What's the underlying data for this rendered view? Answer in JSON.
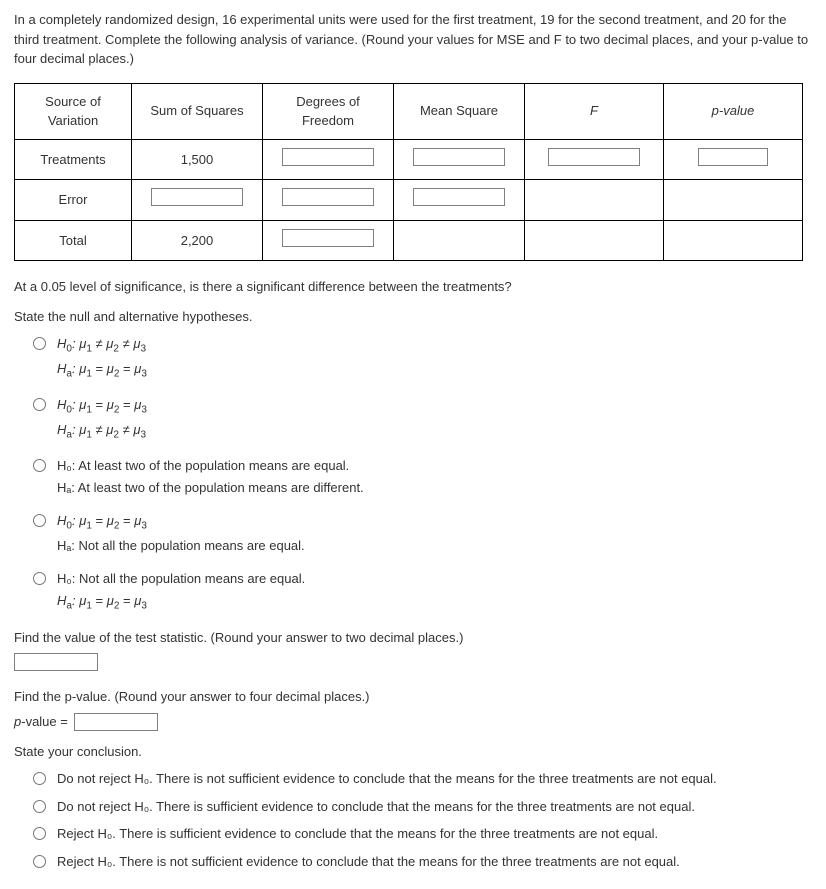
{
  "prompt": "In a completely randomized design, 16 experimental units were used for the first treatment, 19 for the second treatment, and 20 for the third treatment. Complete the following analysis of variance. (Round your values for MSE and F to two decimal places, and your p-value to four decimal places.)",
  "table": {
    "headers": {
      "source": "Source of Variation",
      "ss": "Sum of Squares",
      "df": "Degrees of Freedom",
      "ms": "Mean Square",
      "f": "F",
      "p": "p-value"
    },
    "rows": {
      "treatments": {
        "label": "Treatments",
        "ss": "1,500"
      },
      "error": {
        "label": "Error"
      },
      "total": {
        "label": "Total",
        "ss": "2,200"
      }
    }
  },
  "q_signif": "At a 0.05 level of significance, is there a significant difference between the treatments?",
  "q_state": "State the null and alternative hypotheses.",
  "hyp": {
    "opt1": {
      "h0": "H₀: μ₁ ≠ μ₂ ≠ μ₃",
      "ha": "Hₐ: μ₁ = μ₂ = μ₃"
    },
    "opt2": {
      "h0": "H₀: μ₁ = μ₂ = μ₃",
      "ha": "Hₐ: μ₁ ≠ μ₂ ≠ μ₃"
    },
    "opt3": {
      "h0": "H₀: At least two of the population means are equal.",
      "ha": "Hₐ: At least two of the population means are different."
    },
    "opt4": {
      "h0": "H₀: μ₁ = μ₂ = μ₃",
      "ha": "Hₐ: Not all the population means are equal."
    },
    "opt5": {
      "h0": "H₀: Not all the population means are equal.",
      "ha": "Hₐ: μ₁ = μ₂ = μ₃"
    }
  },
  "q_teststat": "Find the value of the test statistic. (Round your answer to two decimal places.)",
  "q_pvalue": "Find the p-value. (Round your answer to four decimal places.)",
  "pvalue_label": "p-value =",
  "q_conclusion": "State your conclusion.",
  "concl": {
    "c1": "Do not reject H₀. There is not sufficient evidence to conclude that the means for the three treatments are not equal.",
    "c2": "Do not reject H₀. There is sufficient evidence to conclude that the means for the three treatments are not equal.",
    "c3": "Reject H₀. There is sufficient evidence to conclude that the means for the three treatments are not equal.",
    "c4": "Reject H₀. There is not sufficient evidence to conclude that the means for the three treatments are not equal."
  }
}
